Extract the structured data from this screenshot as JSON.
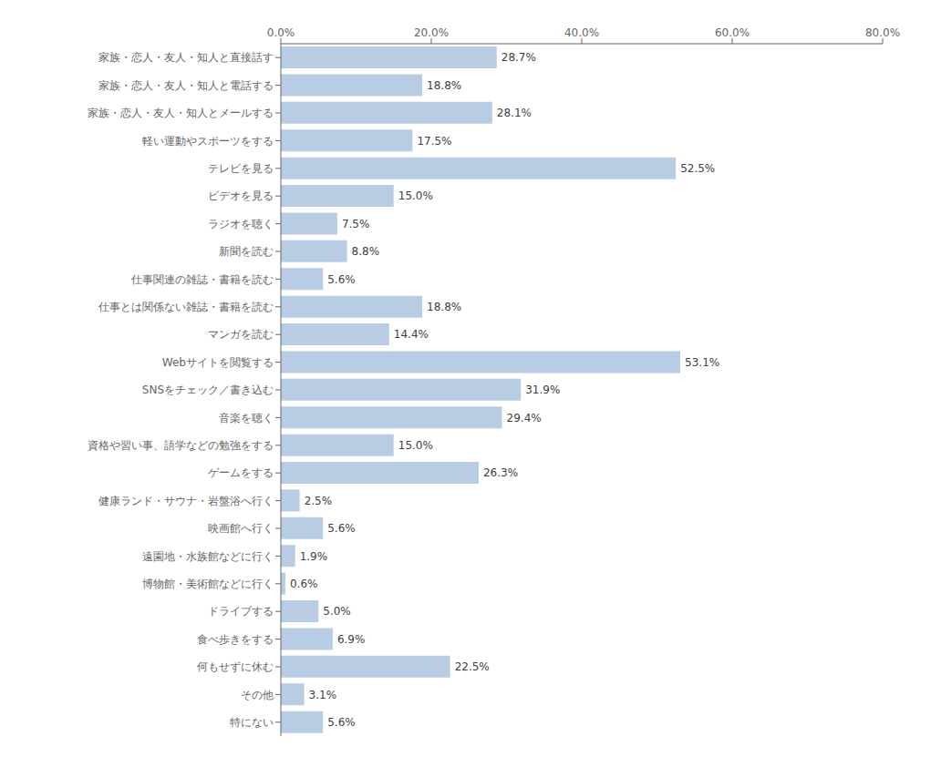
{
  "chart_data": {
    "type": "bar",
    "orientation": "horizontal",
    "categories": [
      "家族・恋人・友人・知人と直接話す",
      "家族・恋人・友人・知人と電話する",
      "家族・恋人・友人・知人とメールする",
      "軽い運動やスポーツをする",
      "テレビを見る",
      "ビデオを見る",
      "ラジオを聴く",
      "新聞を読む",
      "仕事関連の雑誌・書籍を読む",
      "仕事とは関係ない雑誌・書籍を読む",
      "マンガを読む",
      "Webサイトを閲覧する",
      "SNSをチェック／書き込む",
      "音楽を聴く",
      "資格や習い事、語学などの勉強をする",
      "ゲームをする",
      "健康ランド・サウナ・岩盤浴へ行く",
      "映画館へ行く",
      "遠園地・水族館などに行く",
      "博物館・美術館などに行く",
      "ドライブする",
      "食べ歩きをする",
      "何もせずに休む",
      "その他",
      "特にない"
    ],
    "values": [
      28.7,
      18.8,
      28.1,
      17.5,
      52.5,
      15.0,
      7.5,
      8.8,
      5.6,
      18.8,
      14.4,
      53.1,
      31.9,
      29.4,
      15.0,
      26.3,
      2.5,
      5.6,
      1.9,
      0.6,
      5.0,
      6.9,
      22.5,
      3.1,
      5.6
    ],
    "value_labels": [
      "28.7%",
      "18.8%",
      "28.1%",
      "17.5%",
      "52.5%",
      "15.0%",
      "7.5%",
      "8.8%",
      "5.6%",
      "18.8%",
      "14.4%",
      "53.1%",
      "31.9%",
      "29.4%",
      "15.0%",
      "26.3%",
      "2.5%",
      "5.6%",
      "1.9%",
      "0.6%",
      "5.0%",
      "6.9%",
      "22.5%",
      "3.1%",
      "5.6%"
    ],
    "data_labels": true,
    "color": "#b8cce4",
    "xlim": [
      0,
      80
    ],
    "xticks": [
      {
        "value": 0,
        "label": "0.0%"
      },
      {
        "value": 20,
        "label": "20.0%"
      },
      {
        "value": 40,
        "label": "40.0%"
      },
      {
        "value": 60,
        "label": "60.0%"
      },
      {
        "value": 80,
        "label": "80.0%"
      }
    ],
    "grid": false
  }
}
